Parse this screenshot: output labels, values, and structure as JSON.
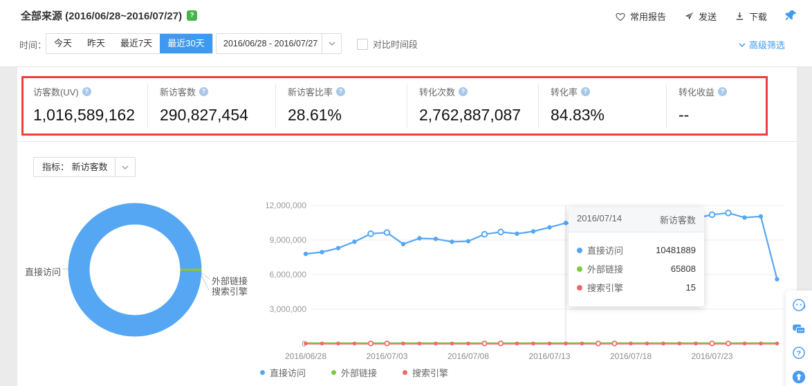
{
  "help_symbol": "?",
  "header": {
    "title": "全部来源 (2016/06/28~2016/07/27)",
    "help_badge": "?",
    "actions": {
      "favorite": "常用报告",
      "send": "发送",
      "download": "下载"
    }
  },
  "filters": {
    "time_label": "时间：",
    "tabs": [
      {
        "label": "今天",
        "active": false
      },
      {
        "label": "昨天",
        "active": false
      },
      {
        "label": "最近7天",
        "active": false
      },
      {
        "label": "最近30天",
        "active": true
      }
    ],
    "date_range": "2016/06/28 - 2016/07/27",
    "compare_label": "对比时间段",
    "advanced_label": "高级筛选"
  },
  "metrics": [
    {
      "label": "访客数(UV)",
      "value": "1,016,589,162"
    },
    {
      "label": "新访客数",
      "value": "290,827,454"
    },
    {
      "label": "新访客比率",
      "value": "28.61%"
    },
    {
      "label": "转化次数",
      "value": "2,762,887,087"
    },
    {
      "label": "转化率",
      "value": "84.83%"
    },
    {
      "label": "转化收益",
      "value": "--"
    }
  ],
  "metric_selector": {
    "label": "指标：",
    "value": "新访客数"
  },
  "tooltip": {
    "date": "2016/07/14",
    "metric_label": "新访客数",
    "rows": [
      {
        "name": "直接访问",
        "value": "10481889",
        "color": "#55a6f3"
      },
      {
        "name": "外部链接",
        "value": "65808",
        "color": "#7ecb3e"
      },
      {
        "name": "搜索引擎",
        "value": "15",
        "color": "#ee6a6a"
      }
    ]
  },
  "legend": [
    {
      "label": "直接访问",
      "color": "#55a6f3"
    },
    {
      "label": "外部链接",
      "color": "#7ecb3e"
    },
    {
      "label": "搜索引擎",
      "color": "#ee6a6a"
    }
  ],
  "chart_data": [
    {
      "type": "pie",
      "variant": "donut",
      "slices": [
        {
          "label": "直接访问",
          "share": 99.37,
          "color": "#55a6f3"
        },
        {
          "label": "外部链接",
          "share": 0.62,
          "color": "#7ecb3e"
        },
        {
          "label": "搜索引擎",
          "share": 0.01,
          "color": "#ee6a6a"
        }
      ]
    },
    {
      "type": "line",
      "x": [
        "2016/06/28",
        "2016/06/29",
        "2016/06/30",
        "2016/07/01",
        "2016/07/02",
        "2016/07/03",
        "2016/07/04",
        "2016/07/05",
        "2016/07/06",
        "2016/07/07",
        "2016/07/08",
        "2016/07/09",
        "2016/07/10",
        "2016/07/11",
        "2016/07/12",
        "2016/07/13",
        "2016/07/14",
        "2016/07/15",
        "2016/07/16",
        "2016/07/17",
        "2016/07/18",
        "2016/07/19",
        "2016/07/20",
        "2016/07/21",
        "2016/07/22",
        "2016/07/23",
        "2016/07/24",
        "2016/07/25",
        "2016/07/26",
        "2016/07/27"
      ],
      "series": [
        {
          "name": "直接访问",
          "color": "#55a6f3",
          "values": [
            7800000,
            7950000,
            8300000,
            8850000,
            9550000,
            9650000,
            8650000,
            9150000,
            9100000,
            8850000,
            8900000,
            9500000,
            9700000,
            9550000,
            9750000,
            10100000,
            10481889,
            10300000,
            10250000,
            10350000,
            10300000,
            10450000,
            10600000,
            10750000,
            10900000,
            11200000,
            11350000,
            10950000,
            11050000,
            5600000
          ]
        },
        {
          "name": "外部链接",
          "color": "#7ecb3e",
          "values": [
            65808,
            65808,
            65808,
            65808,
            65808,
            65808,
            65808,
            65808,
            65808,
            65808,
            65808,
            65808,
            65808,
            65808,
            65808,
            65808,
            65808,
            65808,
            65808,
            65808,
            65808,
            65808,
            65808,
            65808,
            65808,
            65808,
            65808,
            65808,
            65808,
            65808
          ]
        },
        {
          "name": "搜索引擎",
          "color": "#ee6a6a",
          "values": [
            15,
            15,
            15,
            15,
            15,
            15,
            15,
            15,
            15,
            15,
            15,
            15,
            15,
            15,
            15,
            15,
            15,
            15,
            15,
            15,
            15,
            15,
            15,
            15,
            15,
            15,
            15,
            15,
            15,
            15
          ]
        }
      ],
      "ylim": [
        0,
        12000000
      ],
      "yticks_bottom_up": [
        "0",
        "3,000,000",
        "6,000,000",
        "9,000,000",
        "12,000,000"
      ],
      "xtick_indices": [
        0,
        5,
        10,
        15,
        20,
        25
      ],
      "hollow_indices": [
        4,
        5,
        11,
        12,
        18,
        19,
        25,
        26
      ],
      "highlight_index": 16,
      "highlight_date": "2016/07/14",
      "grid": true,
      "legend_position": "bottom"
    }
  ],
  "float_buttons": [
    {
      "icon": "customer-service-icon"
    },
    {
      "icon": "feedback-chat-icon"
    },
    {
      "icon": "help-circle-icon"
    },
    {
      "icon": "back-to-top-icon"
    }
  ],
  "colors": {
    "accent_blue": "#3d9af0",
    "link_blue": "#3f9bf0",
    "line_blue": "#55a6f3",
    "green": "#7ecb3e",
    "red": "#ee6a6a",
    "alert_border": "#f23d3d",
    "badge_green": "#42b44a"
  }
}
